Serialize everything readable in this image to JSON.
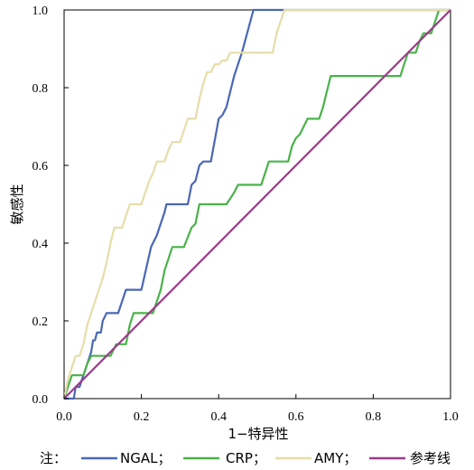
{
  "chart_data": {
    "type": "line",
    "xlabel": "1−特异性",
    "ylabel": "敏感性",
    "xlim": [
      0,
      1
    ],
    "ylim": [
      0,
      1
    ],
    "x_ticks": [
      "0.0",
      "0.2",
      "0.4",
      "0.6",
      "0.8",
      "1.0"
    ],
    "y_ticks": [
      "0.0",
      "0.2",
      "0.4",
      "0.6",
      "0.8",
      "1.0"
    ],
    "grid": false,
    "legend_position": "bottom",
    "legend_prefix": "注：",
    "series": [
      {
        "name": "NGAL；",
        "color": "#4a67b5",
        "points": [
          [
            0,
            0
          ],
          [
            0.025,
            0
          ],
          [
            0.03,
            0.03
          ],
          [
            0.04,
            0.03
          ],
          [
            0.05,
            0.06
          ],
          [
            0.06,
            0.09
          ],
          [
            0.07,
            0.12
          ],
          [
            0.075,
            0.15
          ],
          [
            0.08,
            0.15
          ],
          [
            0.085,
            0.17
          ],
          [
            0.095,
            0.17
          ],
          [
            0.1,
            0.2
          ],
          [
            0.11,
            0.22
          ],
          [
            0.14,
            0.22
          ],
          [
            0.15,
            0.25
          ],
          [
            0.16,
            0.28
          ],
          [
            0.2,
            0.28
          ],
          [
            0.225,
            0.39
          ],
          [
            0.24,
            0.42
          ],
          [
            0.25,
            0.45
          ],
          [
            0.26,
            0.48
          ],
          [
            0.265,
            0.5
          ],
          [
            0.32,
            0.5
          ],
          [
            0.33,
            0.55
          ],
          [
            0.34,
            0.56
          ],
          [
            0.35,
            0.6
          ],
          [
            0.36,
            0.61
          ],
          [
            0.38,
            0.61
          ],
          [
            0.4,
            0.72
          ],
          [
            0.41,
            0.73
          ],
          [
            0.42,
            0.75
          ],
          [
            0.44,
            0.83
          ],
          [
            0.46,
            0.89
          ],
          [
            0.49,
            1.0
          ],
          [
            1,
            1.0
          ]
        ]
      },
      {
        "name": "CRP；",
        "color": "#49b34a",
        "points": [
          [
            0,
            0
          ],
          [
            0.01,
            0.03
          ],
          [
            0.02,
            0.06
          ],
          [
            0.05,
            0.06
          ],
          [
            0.06,
            0.09
          ],
          [
            0.07,
            0.11
          ],
          [
            0.12,
            0.11
          ],
          [
            0.135,
            0.14
          ],
          [
            0.16,
            0.14
          ],
          [
            0.17,
            0.19
          ],
          [
            0.18,
            0.22
          ],
          [
            0.23,
            0.22
          ],
          [
            0.25,
            0.28
          ],
          [
            0.26,
            0.33
          ],
          [
            0.27,
            0.36
          ],
          [
            0.28,
            0.39
          ],
          [
            0.31,
            0.39
          ],
          [
            0.33,
            0.44
          ],
          [
            0.34,
            0.45
          ],
          [
            0.35,
            0.5
          ],
          [
            0.42,
            0.5
          ],
          [
            0.44,
            0.53
          ],
          [
            0.45,
            0.55
          ],
          [
            0.51,
            0.55
          ],
          [
            0.52,
            0.58
          ],
          [
            0.53,
            0.61
          ],
          [
            0.58,
            0.61
          ],
          [
            0.59,
            0.65
          ],
          [
            0.6,
            0.67
          ],
          [
            0.61,
            0.68
          ],
          [
            0.63,
            0.72
          ],
          [
            0.66,
            0.72
          ],
          [
            0.67,
            0.75
          ],
          [
            0.68,
            0.79
          ],
          [
            0.69,
            0.83
          ],
          [
            0.87,
            0.83
          ],
          [
            0.88,
            0.86
          ],
          [
            0.89,
            0.89
          ],
          [
            0.91,
            0.89
          ],
          [
            0.92,
            0.92
          ],
          [
            0.93,
            0.94
          ],
          [
            0.95,
            0.94
          ],
          [
            0.96,
            0.97
          ],
          [
            0.97,
            1.0
          ],
          [
            1,
            1.0
          ]
        ]
      },
      {
        "name": "AMY；",
        "color": "#e6dda8",
        "points": [
          [
            0,
            0
          ],
          [
            0.01,
            0.05
          ],
          [
            0.02,
            0.08
          ],
          [
            0.03,
            0.11
          ],
          [
            0.04,
            0.11
          ],
          [
            0.05,
            0.14
          ],
          [
            0.06,
            0.19
          ],
          [
            0.07,
            0.22
          ],
          [
            0.08,
            0.25
          ],
          [
            0.09,
            0.28
          ],
          [
            0.1,
            0.31
          ],
          [
            0.11,
            0.35
          ],
          [
            0.12,
            0.4
          ],
          [
            0.13,
            0.44
          ],
          [
            0.15,
            0.44
          ],
          [
            0.16,
            0.47
          ],
          [
            0.17,
            0.5
          ],
          [
            0.2,
            0.5
          ],
          [
            0.21,
            0.53
          ],
          [
            0.22,
            0.56
          ],
          [
            0.23,
            0.58
          ],
          [
            0.24,
            0.61
          ],
          [
            0.26,
            0.61
          ],
          [
            0.27,
            0.64
          ],
          [
            0.28,
            0.66
          ],
          [
            0.3,
            0.66
          ],
          [
            0.31,
            0.69
          ],
          [
            0.32,
            0.72
          ],
          [
            0.34,
            0.72
          ],
          [
            0.35,
            0.77
          ],
          [
            0.36,
            0.81
          ],
          [
            0.37,
            0.84
          ],
          [
            0.38,
            0.84
          ],
          [
            0.39,
            0.86
          ],
          [
            0.4,
            0.86
          ],
          [
            0.41,
            0.87
          ],
          [
            0.42,
            0.87
          ],
          [
            0.43,
            0.89
          ],
          [
            0.54,
            0.89
          ],
          [
            0.55,
            0.94
          ],
          [
            0.56,
            0.97
          ],
          [
            0.57,
            1.0
          ],
          [
            1,
            1.0
          ]
        ]
      },
      {
        "name": "参考线",
        "color": "#9b3a8a",
        "points": [
          [
            0,
            0
          ],
          [
            1,
            1
          ]
        ]
      }
    ]
  }
}
